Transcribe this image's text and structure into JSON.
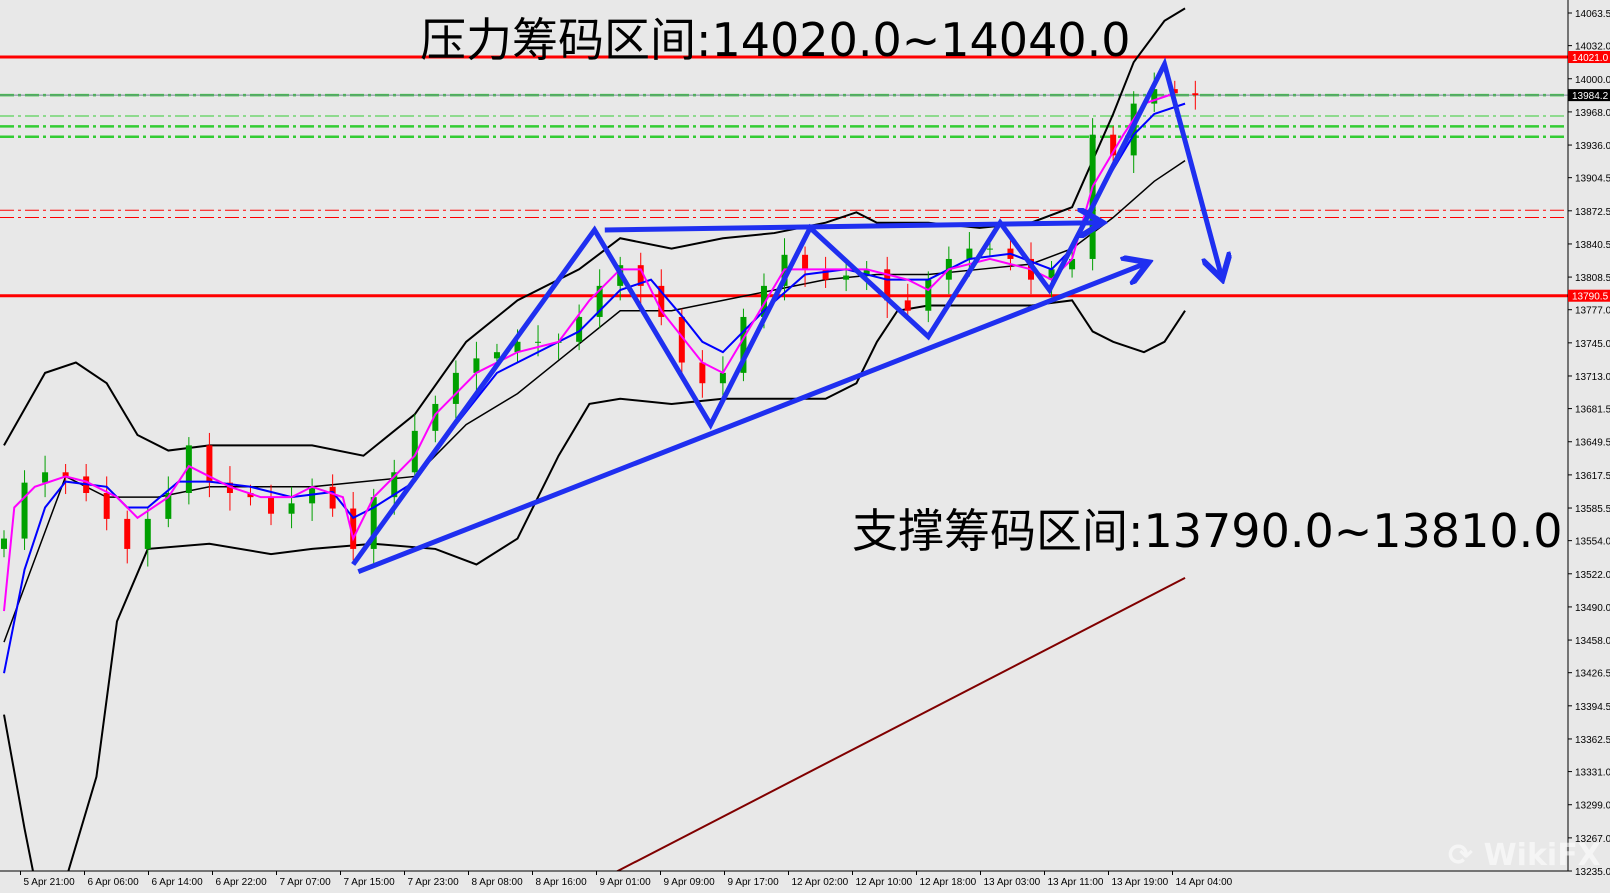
{
  "chart_data": {
    "type": "candlestick",
    "annotations_text": {
      "resistance": "压力筹码区间:14020.0~14040.0",
      "support": "支撑筹码区间:13790.0~13810.0"
    },
    "y_ticks": [
      "14063.5",
      "14032.0",
      "14000.0",
      "13968.0",
      "13936.0",
      "13904.5",
      "13872.5",
      "13840.5",
      "13808.5",
      "13777.0",
      "13745.0",
      "13713.0",
      "13681.5",
      "13649.5",
      "13617.5",
      "13585.5",
      "13554.0",
      "13522.0",
      "13490.0",
      "13458.0",
      "13426.5",
      "13394.5",
      "13362.5",
      "13331.0",
      "13299.0",
      "13267.0",
      "13235.0"
    ],
    "ylim": [
      13235.0,
      14063.5
    ],
    "x_ticks": [
      "5 Apr 21:00",
      "6 Apr 06:00",
      "6 Apr 14:00",
      "6 Apr 22:00",
      "7 Apr 07:00",
      "7 Apr 15:00",
      "7 Apr 23:00",
      "8 Apr 08:00",
      "8 Apr 16:00",
      "9 Apr 01:00",
      "9 Apr 09:00",
      "9 Apr 17:00",
      "12 Apr 02:00",
      "12 Apr 10:00",
      "12 Apr 18:00",
      "13 Apr 03:00",
      "13 Apr 11:00",
      "13 Apr 19:00",
      "14 Apr 04:00"
    ],
    "closes": [
      13556,
      13610,
      13620,
      13616,
      13600,
      13575,
      13546,
      13575,
      13600,
      13646,
      13610,
      13600,
      13596,
      13580,
      13590,
      13606,
      13585,
      13546,
      13596,
      13620,
      13660,
      13686,
      13716,
      13730,
      13736,
      13746,
      13746,
      13746,
      13770,
      13800,
      13820,
      13800,
      13770,
      13726,
      13706,
      13716,
      13770,
      13800,
      13830,
      13816,
      13806,
      13810,
      13816,
      13786,
      13776,
      13806,
      13826,
      13836,
      13836,
      13826,
      13806,
      13816,
      13826,
      13946,
      13926,
      13976,
      13990,
      13986,
      13984.2
    ],
    "price_labels": [
      {
        "value": 14021.0,
        "text": "14021.0",
        "color": "#ff0000"
      },
      {
        "value": 13984.2,
        "text": "13984.2",
        "color": "#000000"
      },
      {
        "value": 13790.5,
        "text": "13790.5",
        "color": "#ff0000"
      }
    ],
    "horizontal_lines": [
      {
        "value": 14021.0,
        "color": "#ff0000",
        "style": "solid"
      },
      {
        "value": 13790.5,
        "color": "#ff0000",
        "style": "solid"
      },
      {
        "value": 13984.2,
        "color": "#33cc33",
        "style": "dashdot-thick"
      },
      {
        "value": 13964.0,
        "color": "#33cc33",
        "style": "dashdot"
      },
      {
        "value": 13954.0,
        "color": "#33cc33",
        "style": "dashdot-thick"
      },
      {
        "value": 13944.0,
        "color": "#33cc33",
        "style": "dashdot-thick"
      },
      {
        "value": 13873.0,
        "color": "#ff0000",
        "style": "dashdot"
      },
      {
        "value": 13866.0,
        "color": "#ff0000",
        "style": "dashdot"
      }
    ],
    "indicators": {
      "bb_upper": [
        [
          0,
          13646
        ],
        [
          2,
          13716
        ],
        [
          3.5,
          13726
        ],
        [
          5,
          13706
        ],
        [
          6.5,
          13656
        ],
        [
          8,
          13641
        ],
        [
          10,
          13646
        ],
        [
          12.5,
          13646
        ],
        [
          15,
          13646
        ],
        [
          17.5,
          13636
        ],
        [
          20,
          13676
        ],
        [
          22.5,
          13746
        ],
        [
          25,
          13786
        ],
        [
          28,
          13816
        ],
        [
          30,
          13846
        ],
        [
          32.5,
          13836
        ],
        [
          35,
          13846
        ],
        [
          37.5,
          13851
        ],
        [
          40,
          13861
        ],
        [
          41.5,
          13871
        ],
        [
          42.5,
          13861
        ],
        [
          45,
          13861
        ],
        [
          47.5,
          13856
        ],
        [
          50,
          13861
        ],
        [
          52,
          13876
        ],
        [
          54,
          13966
        ],
        [
          55,
          14016
        ],
        [
          56.5,
          14056
        ],
        [
          57.5,
          14068
        ]
      ],
      "bb_lower": [
        [
          0,
          13386
        ],
        [
          1,
          13276
        ],
        [
          1.5,
          13226
        ],
        [
          3,
          13226
        ],
        [
          4.5,
          13326
        ],
        [
          5.5,
          13476
        ],
        [
          7,
          13546
        ],
        [
          10,
          13551
        ],
        [
          13,
          13541
        ],
        [
          15,
          13546
        ],
        [
          18,
          13551
        ],
        [
          21,
          13546
        ],
        [
          23,
          13531
        ],
        [
          25,
          13556
        ],
        [
          27,
          13636
        ],
        [
          28.5,
          13686
        ],
        [
          30,
          13691
        ],
        [
          32.5,
          13686
        ],
        [
          35,
          13691
        ],
        [
          37.5,
          13691
        ],
        [
          40,
          13691
        ],
        [
          41.5,
          13706
        ],
        [
          42.5,
          13746
        ],
        [
          43.5,
          13776
        ],
        [
          45,
          13781
        ],
        [
          47.5,
          13781
        ],
        [
          50,
          13781
        ],
        [
          52,
          13786
        ],
        [
          53,
          13756
        ],
        [
          54,
          13746
        ],
        [
          55.5,
          13736
        ],
        [
          56.5,
          13746
        ],
        [
          57.5,
          13776
        ]
      ],
      "bb_middle": [
        [
          0,
          13456
        ],
        [
          3,
          13616
        ],
        [
          5,
          13596
        ],
        [
          7.5,
          13596
        ],
        [
          10,
          13606
        ],
        [
          15,
          13606
        ],
        [
          20,
          13616
        ],
        [
          22.5,
          13666
        ],
        [
          25,
          13696
        ],
        [
          27.5,
          13736
        ],
        [
          30,
          13776
        ],
        [
          32.5,
          13776
        ],
        [
          35,
          13786
        ],
        [
          37.5,
          13796
        ],
        [
          40,
          13806
        ],
        [
          42.5,
          13811
        ],
        [
          45,
          13811
        ],
        [
          47.5,
          13816
        ],
        [
          50,
          13821
        ],
        [
          52,
          13836
        ],
        [
          54,
          13866
        ],
        [
          56,
          13901
        ],
        [
          57.5,
          13921
        ]
      ],
      "ma_blue": [
        [
          0,
          13426
        ],
        [
          1,
          13526
        ],
        [
          2,
          13586
        ],
        [
          3,
          13611
        ],
        [
          5,
          13606
        ],
        [
          6,
          13586
        ],
        [
          7,
          13586
        ],
        [
          8.5,
          13611
        ],
        [
          10,
          13611
        ],
        [
          12,
          13606
        ],
        [
          14,
          13596
        ],
        [
          16,
          13601
        ],
        [
          17,
          13576
        ],
        [
          18,
          13586
        ],
        [
          20,
          13611
        ],
        [
          22,
          13666
        ],
        [
          24,
          13716
        ],
        [
          26,
          13736
        ],
        [
          28,
          13756
        ],
        [
          30,
          13796
        ],
        [
          31.5,
          13806
        ],
        [
          33,
          13771
        ],
        [
          34,
          13746
        ],
        [
          35,
          13736
        ],
        [
          37,
          13776
        ],
        [
          39,
          13811
        ],
        [
          41,
          13816
        ],
        [
          43,
          13806
        ],
        [
          45,
          13806
        ],
        [
          47,
          13826
        ],
        [
          49,
          13831
        ],
        [
          51,
          13816
        ],
        [
          52,
          13836
        ],
        [
          53.5,
          13896
        ],
        [
          55,
          13946
        ],
        [
          56,
          13966
        ],
        [
          57.5,
          13976
        ]
      ],
      "ma_magenta": [
        [
          0,
          13486
        ],
        [
          0.5,
          13586
        ],
        [
          1.5,
          13606
        ],
        [
          3,
          13616
        ],
        [
          4,
          13611
        ],
        [
          5.5,
          13596
        ],
        [
          6.5,
          13576
        ],
        [
          8,
          13596
        ],
        [
          9,
          13626
        ],
        [
          10,
          13616
        ],
        [
          11,
          13606
        ],
        [
          12.5,
          13596
        ],
        [
          14,
          13596
        ],
        [
          15,
          13606
        ],
        [
          16.5,
          13596
        ],
        [
          17,
          13556
        ],
        [
          18,
          13596
        ],
        [
          20,
          13636
        ],
        [
          21,
          13676
        ],
        [
          23,
          13716
        ],
        [
          25,
          13736
        ],
        [
          27,
          13746
        ],
        [
          28.5,
          13786
        ],
        [
          30,
          13816
        ],
        [
          31,
          13816
        ],
        [
          32,
          13776
        ],
        [
          34,
          13726
        ],
        [
          35,
          13716
        ],
        [
          36.5,
          13766
        ],
        [
          38,
          13816
        ],
        [
          40,
          13816
        ],
        [
          42,
          13816
        ],
        [
          44,
          13806
        ],
        [
          45,
          13796
        ],
        [
          46,
          13816
        ],
        [
          48,
          13826
        ],
        [
          50,
          13816
        ],
        [
          51,
          13806
        ],
        [
          52,
          13826
        ],
        [
          53,
          13896
        ],
        [
          54.5,
          13946
        ],
        [
          55.5,
          13976
        ],
        [
          57,
          13986
        ]
      ],
      "ma_darkred": [
        [
          29,
          13226
        ],
        [
          57.5,
          13518
        ]
      ]
    },
    "colors": {
      "bull": "#00a000",
      "bear": "#ff0000",
      "bb": "#000000",
      "ma_blue": "#0000ff",
      "ma_magenta": "#ff00ff",
      "ma_darkred": "#800000",
      "arrows": "#1f2ff0",
      "background": "#e8e8e8"
    },
    "drawn_arrows": [
      {
        "points": [
          [
            17,
            13531
          ],
          [
            28.75,
            13854
          ],
          [
            34.4,
            13666
          ],
          [
            39.25,
            13856
          ],
          [
            45,
            13751
          ],
          [
            48.5,
            13861
          ],
          [
            50.9,
            13796
          ],
          [
            52.6,
            13861
          ],
          [
            56.5,
            14014
          ],
          [
            59.25,
            13811
          ]
        ]
      },
      {
        "points": [
          [
            29.25,
            13854
          ],
          [
            53.25,
            13861
          ]
        ]
      },
      {
        "points": [
          [
            17.25,
            13524
          ],
          [
            55.5,
            13821
          ]
        ]
      }
    ]
  },
  "watermark": "WikiFX"
}
